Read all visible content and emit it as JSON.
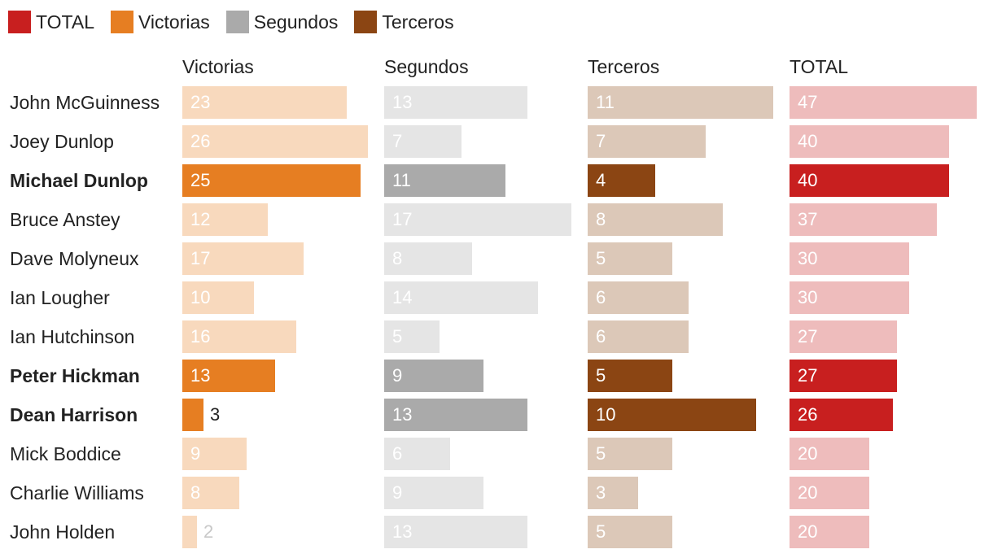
{
  "legend": [
    {
      "label": "TOTAL",
      "color": "#c81f1f"
    },
    {
      "label": "Victorias",
      "color": "#e67e22"
    },
    {
      "label": "Segundos",
      "color": "#aaaaaa"
    },
    {
      "label": "Terceros",
      "color": "#8b4513"
    }
  ],
  "chart_data": {
    "type": "bar",
    "orientation": "horizontal",
    "title": "",
    "columns": [
      "Victorias",
      "Segundos",
      "Terceros",
      "TOTAL"
    ],
    "colors": {
      "Victorias": {
        "strong": "#e67e22",
        "faded": "#f8d9bd"
      },
      "Segundos": {
        "strong": "#aaaaaa",
        "faded": "#e5e5e5"
      },
      "Terceros": {
        "strong": "#8b4513",
        "faded": "#dcc8b8"
      },
      "TOTAL": {
        "strong": "#c81f1f",
        "faded": "#eebcbc"
      }
    },
    "riders": [
      {
        "name": "John McGuinness",
        "highlight": false,
        "values": [
          23,
          13,
          11,
          47
        ]
      },
      {
        "name": "Joey Dunlop",
        "highlight": false,
        "values": [
          26,
          7,
          7,
          40
        ]
      },
      {
        "name": "Michael Dunlop",
        "highlight": true,
        "values": [
          25,
          11,
          4,
          40
        ]
      },
      {
        "name": "Bruce Anstey",
        "highlight": false,
        "values": [
          12,
          17,
          8,
          37
        ]
      },
      {
        "name": "Dave Molyneux",
        "highlight": false,
        "values": [
          17,
          8,
          5,
          30
        ]
      },
      {
        "name": "Ian Lougher",
        "highlight": false,
        "values": [
          10,
          14,
          6,
          30
        ]
      },
      {
        "name": "Ian Hutchinson",
        "highlight": false,
        "values": [
          16,
          5,
          6,
          27
        ]
      },
      {
        "name": "Peter Hickman",
        "highlight": true,
        "values": [
          13,
          9,
          5,
          27
        ]
      },
      {
        "name": "Dean Harrison",
        "highlight": true,
        "values": [
          3,
          13,
          10,
          26
        ]
      },
      {
        "name": "Mick Boddice",
        "highlight": false,
        "values": [
          9,
          6,
          5,
          20
        ]
      },
      {
        "name": "Charlie Williams",
        "highlight": false,
        "values": [
          8,
          9,
          3,
          20
        ]
      },
      {
        "name": "John Holden",
        "highlight": false,
        "values": [
          2,
          13,
          5,
          20
        ]
      }
    ]
  }
}
